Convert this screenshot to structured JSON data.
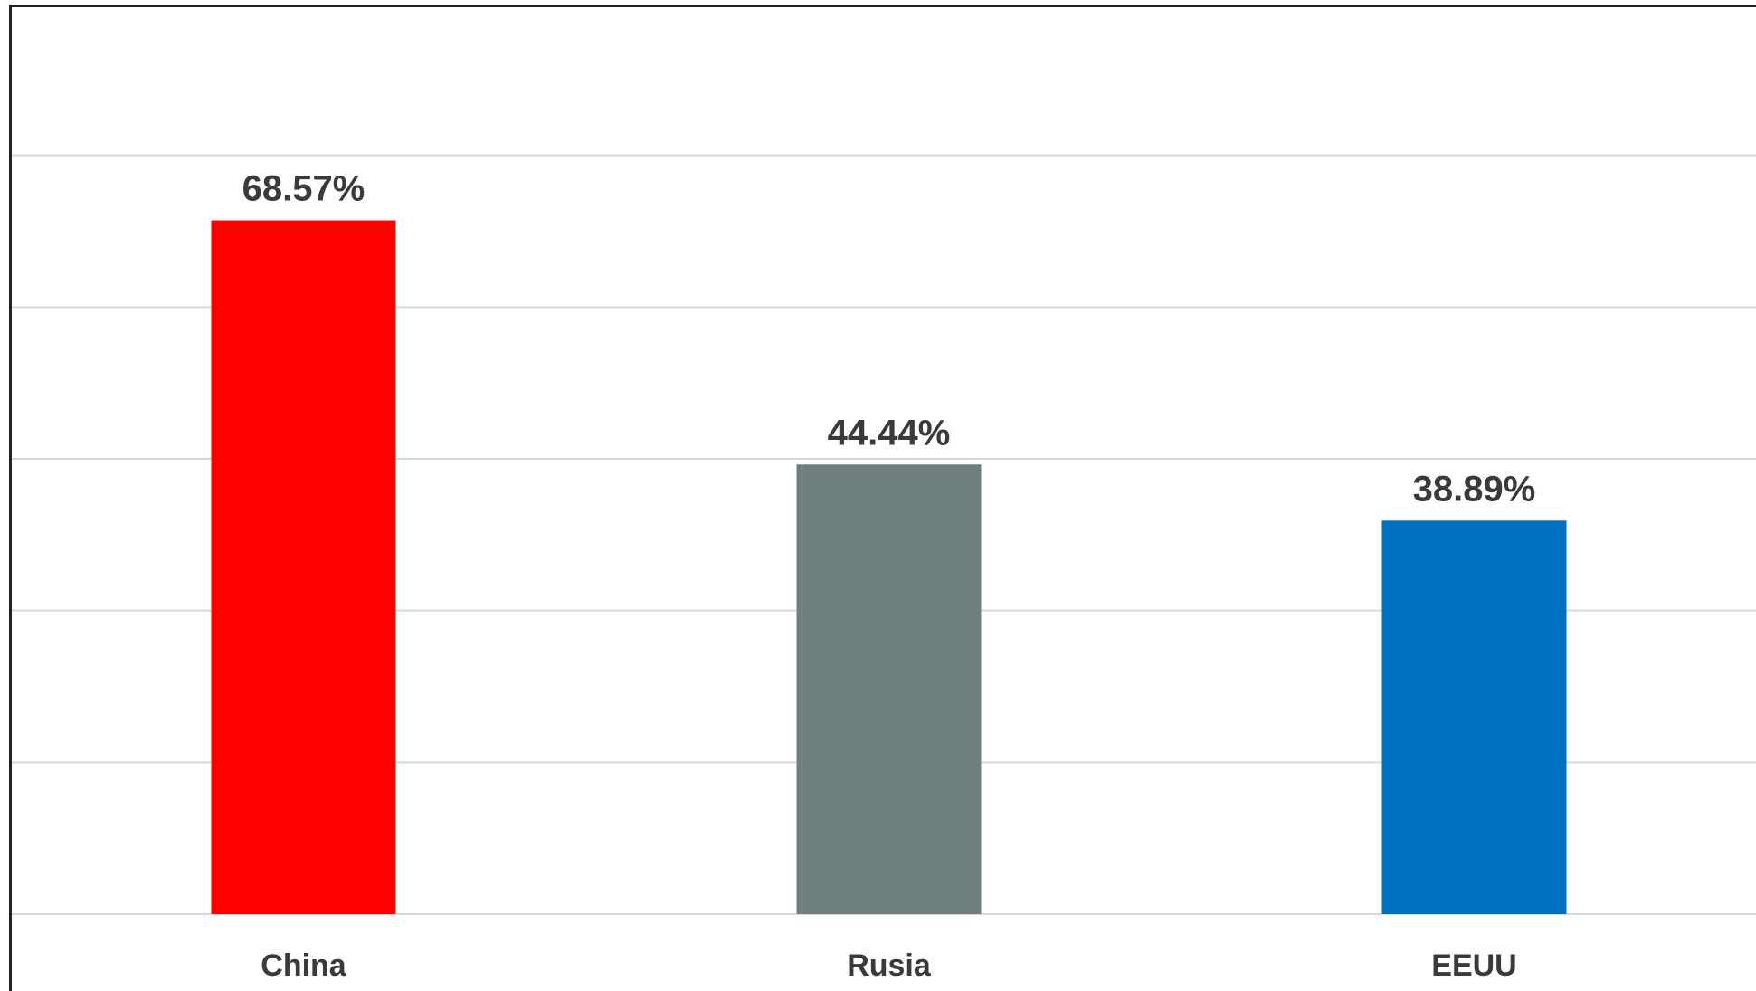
{
  "chart_data": {
    "type": "bar",
    "categories": [
      "China",
      "Rusia",
      "EEUU"
    ],
    "values": [
      68.57,
      44.44,
      38.89
    ],
    "data_labels": [
      "68.57%",
      "44.44%",
      "38.89%"
    ],
    "colors": [
      "#ff0000",
      "#6f7f7e",
      "#0070c0"
    ],
    "ylim": [
      0,
      90
    ],
    "gridlines": [
      15,
      30,
      45,
      60,
      75
    ],
    "grid": true,
    "title": "",
    "xlabel": "",
    "ylabel": ""
  }
}
